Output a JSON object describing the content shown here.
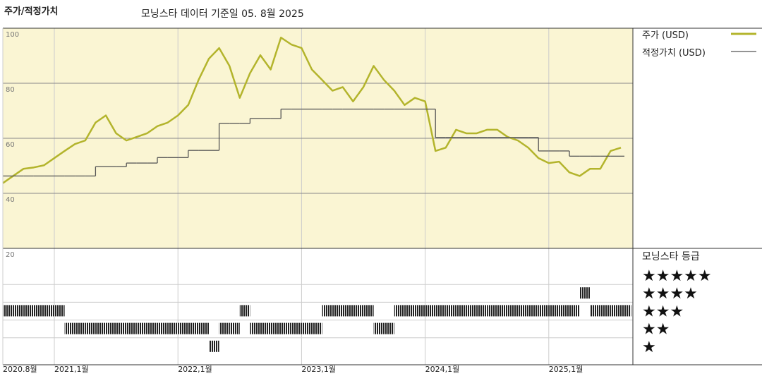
{
  "chart_data": {
    "type": "line",
    "title": "주가/적정가치",
    "subtitle": "모닝스타 데이터 기준일 05. 8월 2025",
    "x": [
      "2020-08",
      "2020-09",
      "2020-10",
      "2020-11",
      "2020-12",
      "2021-01",
      "2021-02",
      "2021-03",
      "2021-04",
      "2021-05",
      "2021-06",
      "2021-07",
      "2021-08",
      "2021-09",
      "2021-10",
      "2021-11",
      "2021-12",
      "2022-01",
      "2022-02",
      "2022-03",
      "2022-04",
      "2022-05",
      "2022-06",
      "2022-07",
      "2022-08",
      "2022-09",
      "2022-10",
      "2022-11",
      "2022-12",
      "2023-01",
      "2023-02",
      "2023-03",
      "2023-04",
      "2023-05",
      "2023-06",
      "2023-07",
      "2023-08",
      "2023-09",
      "2023-10",
      "2023-11",
      "2023-12",
      "2024-01",
      "2024-02",
      "2024-03",
      "2024-04",
      "2024-05",
      "2024-06",
      "2024-07",
      "2024-08",
      "2024-09",
      "2024-10",
      "2024-11",
      "2024-12",
      "2025-01",
      "2025-02",
      "2025-03",
      "2025-04",
      "2025-05",
      "2025-06",
      "2025-07",
      "2025-08"
    ],
    "series": [
      {
        "name": "주가 (USD)",
        "color": "#b3b42c",
        "step": false,
        "values": [
          43.7,
          46.3,
          48.9,
          49.4,
          50.2,
          52.8,
          55.4,
          57.9,
          59.2,
          65.7,
          68.3,
          61.8,
          59.2,
          60.5,
          61.8,
          64.4,
          65.7,
          68.3,
          72.1,
          81.2,
          88.9,
          92.8,
          86.3,
          74.7,
          83.7,
          90.2,
          85.0,
          96.6,
          94.1,
          92.8,
          85.0,
          81.2,
          77.3,
          78.6,
          73.4,
          78.6,
          86.3,
          81.2,
          77.3,
          72.1,
          74.7,
          73.4,
          55.4,
          56.6,
          63.1,
          61.8,
          61.8,
          63.1,
          63.1,
          60.5,
          59.2,
          56.6,
          52.8,
          51.0,
          51.5,
          47.6,
          46.3,
          48.9,
          48.9,
          55.4,
          56.6
        ]
      },
      {
        "name": "적정가치 (USD)",
        "color": "#555555",
        "step": true,
        "values": [
          46.3,
          46.3,
          46.3,
          46.3,
          46.3,
          46.3,
          46.3,
          46.3,
          46.3,
          49.7,
          49.7,
          49.7,
          51.0,
          51.0,
          51.0,
          53.0,
          53.0,
          53.0,
          55.6,
          55.6,
          55.6,
          65.4,
          65.4,
          65.4,
          67.2,
          67.2,
          67.2,
          70.6,
          70.6,
          70.6,
          70.6,
          70.6,
          70.6,
          70.6,
          70.6,
          70.6,
          70.6,
          70.6,
          70.6,
          70.6,
          70.6,
          70.6,
          60.3,
          60.3,
          60.3,
          60.3,
          60.3,
          60.3,
          60.3,
          60.3,
          60.3,
          60.3,
          55.4,
          55.4,
          55.4,
          53.5,
          53.5,
          53.5,
          53.5,
          53.5,
          53.5
        ]
      }
    ],
    "ylim": [
      20,
      100
    ],
    "yticks": [
      20,
      40,
      60,
      80,
      100
    ],
    "xticks": [
      {
        "value": "2020-08",
        "label": "2020.8월"
      },
      {
        "value": "2021-01",
        "label": "2021,1월"
      },
      {
        "value": "2022-01",
        "label": "2022,1월"
      },
      {
        "value": "2023-01",
        "label": "2023,1월"
      },
      {
        "value": "2024-01",
        "label": "2024,1월"
      },
      {
        "value": "2025-01",
        "label": "2025,1월"
      }
    ],
    "grid": true,
    "background": "#faf5d3",
    "rating": {
      "title": "모닝스타 등급",
      "labels": [
        "★★★★★",
        "★★★★",
        "★★★",
        "★★",
        "★"
      ],
      "levels": [
        5,
        4,
        3,
        2,
        1
      ],
      "values": [
        3,
        3,
        3,
        3,
        3,
        3,
        2,
        2,
        2,
        2,
        2,
        2,
        2,
        2,
        2,
        2,
        2,
        2,
        2,
        2,
        1,
        2,
        2,
        3,
        2,
        2,
        2,
        2,
        2,
        2,
        2,
        3,
        3,
        3,
        3,
        3,
        2,
        2,
        3,
        3,
        3,
        3,
        3,
        3,
        3,
        3,
        3,
        3,
        3,
        3,
        3,
        3,
        3,
        3,
        3,
        3,
        4,
        3,
        3,
        3,
        3
      ]
    }
  }
}
